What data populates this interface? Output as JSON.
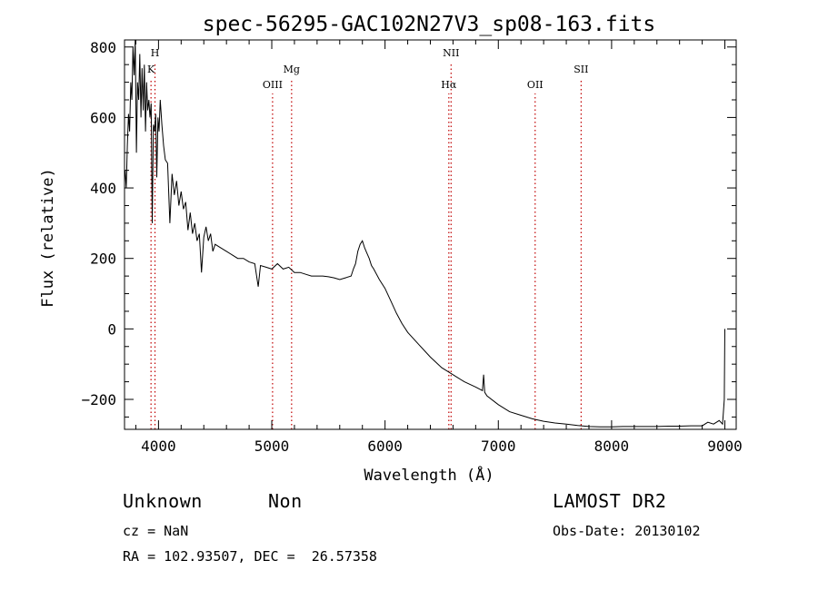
{
  "chart_data": {
    "type": "line",
    "title": "spec-56295-GAC102N27V3_sp08-163.fits",
    "xlabel": "Wavelength (Å)",
    "ylabel": "Flux (relative)",
    "xlim": [
      3700,
      9100
    ],
    "ylim": [
      -285,
      820
    ],
    "x_ticks": [
      4000,
      5000,
      6000,
      7000,
      8000,
      9000
    ],
    "y_ticks": [
      -200,
      0,
      200,
      400,
      600,
      800
    ],
    "grid": false,
    "line_color": "#000000",
    "marker_color": "#c00000",
    "series": [
      {
        "x": [
          3705,
          3715,
          3725,
          3735,
          3745,
          3755,
          3765,
          3775,
          3785,
          3795,
          3805,
          3815,
          3825,
          3835,
          3845,
          3855,
          3865,
          3875,
          3885,
          3895,
          3905,
          3915,
          3925,
          3935,
          3945,
          3955,
          3965,
          3975,
          3985,
          3995,
          4005,
          4015,
          4030,
          4045,
          4060,
          4080,
          4100,
          4120,
          4140,
          4160,
          4180,
          4200,
          4220,
          4240,
          4260,
          4280,
          4300,
          4320,
          4340,
          4360,
          4380,
          4400,
          4420,
          4440,
          4460,
          4480,
          4500,
          4550,
          4600,
          4650,
          4700,
          4750,
          4800,
          4850,
          4880,
          4900,
          4950,
          5000,
          5050,
          5100,
          5150,
          5200,
          5250,
          5300,
          5350,
          5400,
          5450,
          5500,
          5550,
          5600,
          5650,
          5700,
          5720,
          5740,
          5760,
          5780,
          5800,
          5820,
          5840,
          5860,
          5880,
          5900,
          5950,
          6000,
          6050,
          6100,
          6150,
          6200,
          6300,
          6400,
          6500,
          6550,
          6600,
          6700,
          6800,
          6860,
          6870,
          6880,
          6900,
          7000,
          7100,
          7200,
          7300,
          7400,
          7500,
          7600,
          7700,
          7800,
          7900,
          8000,
          8100,
          8200,
          8300,
          8400,
          8500,
          8600,
          8700,
          8800,
          8850,
          8900,
          8950,
          8980,
          8995,
          9000
        ],
        "y": [
          450,
          400,
          520,
          610,
          560,
          700,
          650,
          800,
          720,
          820,
          500,
          700,
          650,
          780,
          600,
          740,
          620,
          750,
          560,
          700,
          620,
          650,
          600,
          640,
          300,
          580,
          560,
          610,
          430,
          600,
          560,
          650,
          580,
          520,
          480,
          470,
          300,
          440,
          380,
          420,
          350,
          390,
          340,
          360,
          280,
          330,
          270,
          300,
          250,
          270,
          160,
          260,
          290,
          250,
          270,
          220,
          240,
          230,
          220,
          210,
          200,
          200,
          190,
          185,
          120,
          180,
          175,
          170,
          185,
          170,
          175,
          160,
          160,
          155,
          150,
          150,
          150,
          148,
          145,
          140,
          145,
          150,
          170,
          185,
          220,
          240,
          250,
          230,
          215,
          200,
          180,
          170,
          140,
          115,
          80,
          45,
          15,
          -10,
          -45,
          -80,
          -110,
          -120,
          -130,
          -150,
          -165,
          -175,
          -130,
          -180,
          -190,
          -215,
          -235,
          -245,
          -255,
          -262,
          -267,
          -270,
          -274,
          -277,
          -278,
          -278,
          -277,
          -277,
          -277,
          -277,
          -276,
          -276,
          -275,
          -275,
          -265,
          -270,
          -260,
          -270,
          -200,
          0
        ]
      }
    ],
    "line_markers": [
      {
        "label": "K",
        "x": 3934,
        "row": 2
      },
      {
        "label": "H",
        "x": 3969,
        "row": 1
      },
      {
        "label": "OIII",
        "x": 5007,
        "row": 3
      },
      {
        "label": "Mg",
        "x": 5175,
        "row": 2
      },
      {
        "label": "NII",
        "x": 6583,
        "row": 1
      },
      {
        "label": "Hα",
        "x": 6563,
        "row": 3
      },
      {
        "label": "OII",
        "x": 7325,
        "row": 3
      },
      {
        "label": "SII",
        "x": 7731,
        "row": 2
      }
    ]
  },
  "footer": {
    "class_label": "Unknown",
    "subclass_label": "Non",
    "survey": "LAMOST DR2",
    "cz": "cz = NaN",
    "obs_date": "Obs-Date: 20130102",
    "coords": "RA = 102.93507, DEC =  26.57358"
  }
}
